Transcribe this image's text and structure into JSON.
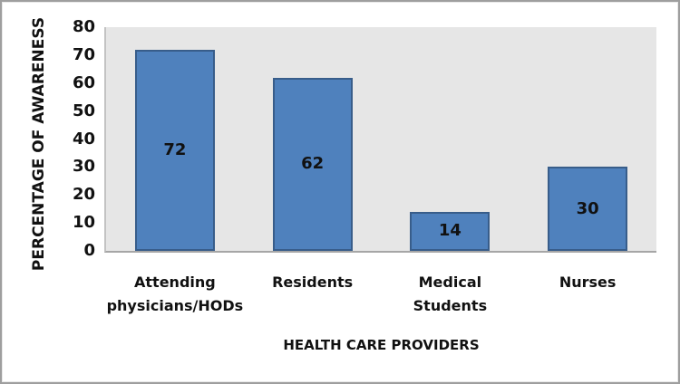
{
  "chart_data": {
    "type": "bar",
    "categories": [
      "Attending\nphysicians/HODs",
      "Residents",
      "Medical\nStudents",
      "Nurses"
    ],
    "values": [
      72,
      62,
      14,
      30
    ],
    "data_labels": [
      "72",
      "62",
      "14",
      "30"
    ],
    "title": "",
    "xlabel": "HEALTH CARE PROVIDERS",
    "ylabel": "PERCENTAGE OF AWARENESS",
    "ylim": [
      0,
      80
    ],
    "yticks": [
      0,
      10,
      20,
      30,
      40,
      50,
      60,
      70,
      80
    ],
    "grid": false,
    "legend_position": "none",
    "colors": {
      "bar_fill": "#4f81bd",
      "bar_border": "#385d8a",
      "plot_background": "#e6e6e6",
      "axis_line": "#a6a6a6",
      "text": "#111111",
      "chart_background": "#ffffff",
      "frame_border": "#9e9e9e"
    }
  }
}
